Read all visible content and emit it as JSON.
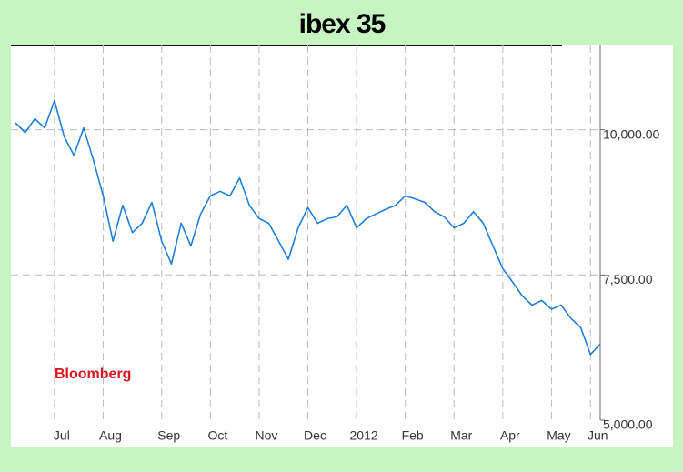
{
  "chart_data": {
    "type": "line",
    "title": "ibex 35",
    "annotation": "Bloomberg",
    "categories": [
      null,
      null,
      null,
      null,
      "Jul",
      null,
      null,
      null,
      null,
      "Aug",
      null,
      null,
      null,
      null,
      null,
      "Sep",
      null,
      null,
      null,
      null,
      "Oct",
      null,
      null,
      null,
      null,
      "Nov",
      null,
      null,
      null,
      null,
      "Dec",
      null,
      null,
      null,
      null,
      "2012",
      null,
      null,
      null,
      null,
      "Feb",
      null,
      null,
      null,
      null,
      "Mar",
      null,
      null,
      null,
      null,
      "Apr",
      null,
      null,
      null,
      null,
      "May",
      null,
      null,
      null,
      "Jun",
      null
    ],
    "series": [
      {
        "name": "ibex 35",
        "color": "#1f80e0",
        "values": [
          10120,
          9950,
          10190,
          10030,
          10500,
          9880,
          9560,
          10030,
          9480,
          8860,
          8080,
          8700,
          8230,
          8390,
          8750,
          8080,
          7690,
          8390,
          8000,
          8550,
          8860,
          8940,
          8860,
          9170,
          8700,
          8470,
          8390,
          8080,
          7770,
          8310,
          8660,
          8390,
          8470,
          8500,
          8700,
          8310,
          8470,
          8550,
          8630,
          8700,
          8860,
          8810,
          8750,
          8590,
          8500,
          8310,
          8390,
          8590,
          8390,
          8000,
          7610,
          7380,
          7140,
          6980,
          7060,
          6910,
          6980,
          6750,
          6590,
          6130,
          6310
        ]
      }
    ],
    "ylim": [
      5000,
      11450
    ],
    "yticks": [
      {
        "value": 5000,
        "label": "5,000.00"
      },
      {
        "value": 7500,
        "label": "7,500.00"
      },
      {
        "value": 10000,
        "label": "10,000.00"
      }
    ],
    "grid": true
  }
}
